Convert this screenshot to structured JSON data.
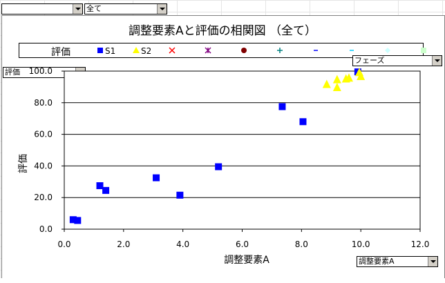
{
  "controls": {
    "top_filter_1": "",
    "top_filter_2": "全て",
    "y_field": "評価",
    "phase_field": "フェーズ",
    "x_field": "調整要素A"
  },
  "legend": {
    "title": "評価",
    "items": [
      {
        "label": "S1",
        "marker": "square",
        "color": "#0000ff"
      },
      {
        "label": "S2",
        "marker": "triangle",
        "color": "#ffff00"
      },
      {
        "label": "",
        "marker": "x",
        "color": "#ff0000"
      },
      {
        "label": "",
        "marker": "star",
        "color": "#800080"
      },
      {
        "label": "",
        "marker": "circle",
        "color": "#800000"
      },
      {
        "label": "",
        "marker": "plus",
        "color": "#008080"
      },
      {
        "label": "",
        "marker": "dash",
        "color": "#0000ff"
      },
      {
        "label": "",
        "marker": "dash",
        "color": "#00ccff"
      },
      {
        "label": "",
        "marker": "diamond",
        "color": "#ccffff"
      },
      {
        "label": "",
        "marker": "square",
        "color": "#ccffcc"
      }
    ]
  },
  "chart_data": {
    "type": "scatter",
    "title": "調整要素Aと評価の相関図 （全て）",
    "xlabel": "調整要素A",
    "ylabel": "評価",
    "xlim": [
      0,
      12
    ],
    "ylim": [
      0,
      100
    ],
    "x_ticks": [
      "0.0",
      "2.0",
      "4.0",
      "6.0",
      "8.0",
      "10.0",
      "12.0"
    ],
    "y_ticks": [
      "0.0",
      "20.0",
      "40.0",
      "60.0",
      "80.0",
      "100.0"
    ],
    "grid": "horizontal",
    "series": [
      {
        "name": "S1",
        "color": "#0000ff",
        "marker": "square",
        "points": [
          [
            0.3,
            6
          ],
          [
            0.45,
            5.5
          ],
          [
            1.2,
            27.5
          ],
          [
            1.4,
            24.5
          ],
          [
            3.1,
            32.5
          ],
          [
            3.9,
            21.5
          ],
          [
            5.2,
            39.5
          ],
          [
            7.35,
            77.5
          ],
          [
            8.05,
            68
          ],
          [
            9.9,
            99.5
          ]
        ]
      },
      {
        "name": "S2",
        "color": "#ffff00",
        "marker": "triangle",
        "points": [
          [
            8.85,
            91.5
          ],
          [
            9.2,
            94.5
          ],
          [
            9.2,
            89.5
          ],
          [
            9.5,
            95
          ],
          [
            9.6,
            95.5
          ],
          [
            9.95,
            99
          ],
          [
            10.0,
            96.5
          ]
        ]
      }
    ]
  }
}
